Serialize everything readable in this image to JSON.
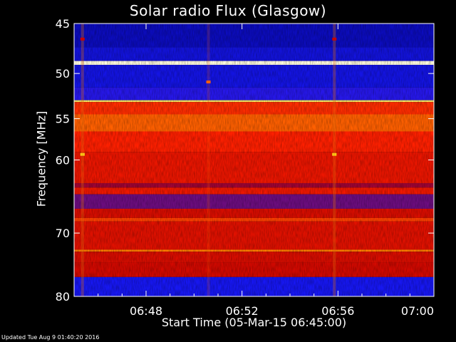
{
  "chart_data": {
    "type": "heatmap",
    "title": "Solar radio Flux (Glasgow)",
    "xlabel": "Start Time (05-Mar-15 06:45:00)",
    "ylabel": "Frequency [MHz]",
    "x_range_minutes": [
      0,
      15
    ],
    "x_ticks": [
      {
        "minute": 3,
        "label": "06:48"
      },
      {
        "minute": 7,
        "label": "06:52"
      },
      {
        "minute": 11,
        "label": "06:56"
      },
      {
        "minute": 15,
        "label": "07:00"
      }
    ],
    "y_range_mhz": [
      45,
      80
    ],
    "y_scale": "log",
    "y_inverted": true,
    "y_ticks": [
      45,
      50,
      55,
      60,
      70,
      80
    ],
    "colormap": [
      "#000080",
      "#1a1aff",
      "#c00000",
      "#ff2000",
      "#ff8a00",
      "#ffe000",
      "#ffffff"
    ],
    "frequency_bands": [
      {
        "from": 45.0,
        "to": 47.3,
        "level": 0.08
      },
      {
        "from": 47.3,
        "to": 48.7,
        "level": 0.12
      },
      {
        "from": 48.7,
        "to": 49.1,
        "level": 0.98
      },
      {
        "from": 49.1,
        "to": 51.5,
        "level": 0.13
      },
      {
        "from": 51.5,
        "to": 52.9,
        "level": 0.18
      },
      {
        "from": 52.9,
        "to": 53.1,
        "level": 0.9
      },
      {
        "from": 53.1,
        "to": 54.5,
        "level": 0.52
      },
      {
        "from": 54.5,
        "to": 56.5,
        "level": 0.6
      },
      {
        "from": 56.5,
        "to": 59.0,
        "level": 0.5
      },
      {
        "from": 59.0,
        "to": 63.0,
        "level": 0.45
      },
      {
        "from": 63.0,
        "to": 63.6,
        "level": 0.3
      },
      {
        "from": 63.6,
        "to": 64.5,
        "level": 0.46
      },
      {
        "from": 64.5,
        "to": 66.5,
        "level": 0.25
      },
      {
        "from": 66.5,
        "to": 67.8,
        "level": 0.4
      },
      {
        "from": 67.8,
        "to": 68.3,
        "level": 0.55
      },
      {
        "from": 68.3,
        "to": 72.5,
        "level": 0.42
      },
      {
        "from": 72.5,
        "to": 72.8,
        "level": 0.65
      },
      {
        "from": 72.8,
        "to": 74.5,
        "level": 0.4
      },
      {
        "from": 74.5,
        "to": 76.8,
        "level": 0.38
      },
      {
        "from": 76.8,
        "to": 80.0,
        "level": 0.15
      }
    ],
    "time_features": [
      {
        "minute": 0.35,
        "mhz": 59.3,
        "level": 0.85
      },
      {
        "minute": 10.85,
        "mhz": 59.3,
        "level": 0.85
      },
      {
        "minute": 0.35,
        "mhz": 46.5,
        "level": 0.35
      },
      {
        "minute": 10.85,
        "mhz": 46.5,
        "level": 0.35
      },
      {
        "minute": 5.6,
        "mhz": 50.9,
        "level": 0.6
      }
    ]
  },
  "footer": {
    "updated": "Updated Tue Aug  9 01:40:20 2016"
  }
}
